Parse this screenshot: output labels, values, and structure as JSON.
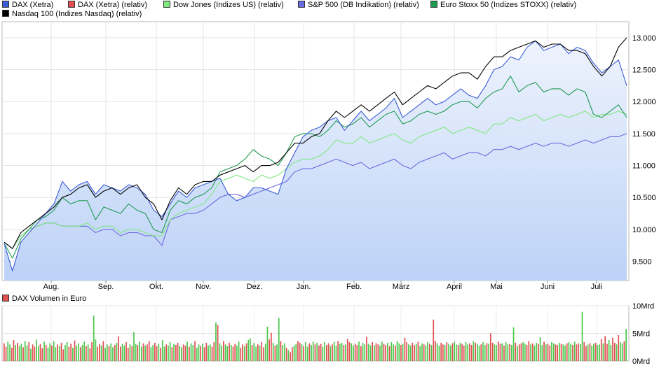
{
  "legend": [
    {
      "name": "DAX (Xetra)",
      "color": "#3b5bd6"
    },
    {
      "name": "DAX (Xetra) (relativ)",
      "color": "#e05050"
    },
    {
      "name": "Dow Jones (Indizes US) (relativ)",
      "color": "#7fe87f"
    },
    {
      "name": "S&P 500 (DB Indikation) (relativ)",
      "color": "#6a6ae0"
    },
    {
      "name": "Euro Stoxx 50 (Indizes STOXX) (relativ)",
      "color": "#1e9a50"
    },
    {
      "name": "Nasdaq 100 (Indizes Nasdaq) (relativ)",
      "color": "#000000"
    }
  ],
  "chart_data": [
    {
      "type": "line",
      "x_ticks": [
        "Aug.",
        "Sep.",
        "Okt.",
        "Nov.",
        "Dez.",
        "Jan.",
        "Feb.",
        "März",
        "April",
        "Mai",
        "Juni",
        "Juli"
      ],
      "y_ticks": [
        "9.500",
        "10.000",
        "10.500",
        "11.000",
        "11.500",
        "12.000",
        "12.500",
        "13.000"
      ],
      "ylim": [
        9200,
        13250
      ],
      "area_fill": "#bcd2f7",
      "series": [
        {
          "name": "DAX (Xetra)",
          "color": "#3b5bd6",
          "values": [
            9780,
            9350,
            9800,
            9950,
            10100,
            10250,
            10400,
            10750,
            10600,
            10700,
            10750,
            10550,
            10700,
            10650,
            10600,
            10700,
            10650,
            10550,
            10300,
            10200,
            10400,
            10600,
            10500,
            10650,
            10700,
            10750,
            10800,
            10550,
            10450,
            10500,
            10650,
            10650,
            10600,
            10550,
            10950,
            11200,
            11450,
            11550,
            11600,
            11700,
            11750,
            11550,
            11700,
            11850,
            11700,
            11800,
            11900,
            12050,
            11750,
            11850,
            11950,
            12050,
            11950,
            12000,
            12100,
            12200,
            12100,
            12050,
            12250,
            12500,
            12550,
            12700,
            12650,
            12850,
            12950,
            12800,
            12850,
            12900,
            12750,
            12850,
            12800,
            12600,
            12450,
            12550,
            12650,
            12250
          ]
        },
        {
          "name": "DAX (Xetra) (relativ)",
          "color": "#e05050",
          "values": []
        },
        {
          "name": "Dow Jones (Indizes US) (relativ)",
          "color": "#7fe87f",
          "values": [
            9800,
            9700,
            9900,
            10000,
            10050,
            10100,
            10100,
            10050,
            10050,
            10050,
            10100,
            10000,
            10050,
            10050,
            9950,
            10000,
            10000,
            9950,
            9900,
            9900,
            10150,
            10250,
            10300,
            10350,
            10400,
            10550,
            10750,
            10800,
            10850,
            10800,
            10750,
            10850,
            10800,
            10850,
            10950,
            11050,
            11100,
            11100,
            11150,
            11250,
            11400,
            11350,
            11350,
            11450,
            11350,
            11400,
            11450,
            11500,
            11400,
            11350,
            11450,
            11500,
            11550,
            11600,
            11500,
            11550,
            11600,
            11550,
            11500,
            11650,
            11650,
            11750,
            11700,
            11750,
            11800,
            11700,
            11750,
            11800,
            11750,
            11800,
            11850,
            11750,
            11800,
            11800,
            11850,
            11800
          ]
        },
        {
          "name": "S&P 500 (DB Indikation) (relativ)",
          "color": "#6a6ae0",
          "values": [
            9800,
            9700,
            9900,
            10000,
            10050,
            10100,
            10100,
            10050,
            10050,
            10050,
            10050,
            9950,
            10000,
            10000,
            9900,
            9950,
            9950,
            9900,
            9900,
            9750,
            10150,
            10200,
            10250,
            10250,
            10300,
            10400,
            10500,
            10550,
            10550,
            10500,
            10550,
            10600,
            10650,
            10700,
            10750,
            10900,
            10950,
            10950,
            11000,
            11050,
            11100,
            11050,
            11000,
            11050,
            10950,
            11000,
            11050,
            11100,
            11000,
            10950,
            11050,
            11100,
            11150,
            11200,
            11100,
            11150,
            11200,
            11200,
            11150,
            11250,
            11250,
            11300,
            11250,
            11300,
            11350,
            11300,
            11350,
            11350,
            11300,
            11350,
            11400,
            11350,
            11400,
            11450,
            11450,
            11500
          ]
        },
        {
          "name": "Euro Stoxx 50 (Indizes STOXX) (relativ)",
          "color": "#1e9a50",
          "values": [
            9780,
            9550,
            9850,
            10000,
            10150,
            10200,
            10300,
            10500,
            10400,
            10450,
            10450,
            10150,
            10350,
            10300,
            10250,
            10400,
            10300,
            10250,
            10000,
            9950,
            10300,
            10450,
            10400,
            10500,
            10550,
            10650,
            10900,
            10950,
            11000,
            11100,
            11250,
            11150,
            11100,
            11000,
            11200,
            11450,
            11500,
            11500,
            11450,
            11550,
            11700,
            11600,
            11650,
            11750,
            11600,
            11700,
            11800,
            11850,
            11650,
            11700,
            11800,
            11850,
            11800,
            11850,
            11950,
            12000,
            12000,
            11900,
            12050,
            12150,
            12200,
            12400,
            12150,
            12250,
            12300,
            12150,
            12200,
            12200,
            12100,
            12200,
            12150,
            11800,
            11750,
            11850,
            11950,
            11750
          ]
        },
        {
          "name": "Nasdaq 100 (Indizes Nasdaq) (relativ)",
          "color": "#000000",
          "values": [
            9800,
            9700,
            9950,
            10050,
            10150,
            10250,
            10350,
            10500,
            10550,
            10650,
            10700,
            10500,
            10600,
            10650,
            10550,
            10650,
            10700,
            10500,
            10400,
            10150,
            10450,
            10650,
            10550,
            10700,
            10750,
            10750,
            10850,
            10900,
            10950,
            11000,
            10900,
            11000,
            11000,
            11050,
            11200,
            11350,
            11350,
            11450,
            11500,
            11700,
            11850,
            11750,
            11850,
            11950,
            11850,
            11950,
            12050,
            12150,
            11950,
            12050,
            12150,
            12250,
            12200,
            12300,
            12400,
            12450,
            12450,
            12350,
            12550,
            12700,
            12700,
            12800,
            12850,
            12900,
            12950,
            12850,
            12900,
            12900,
            12800,
            12800,
            12750,
            12550,
            12400,
            12550,
            12850,
            13000
          ]
        }
      ]
    },
    {
      "type": "bar",
      "title": "DAX Volumen in Euro",
      "y_ticks": [
        "10Mrd",
        "5Mrd",
        "0Mrd"
      ],
      "ylim": [
        0,
        10
      ],
      "values": [
        3.2,
        2.6,
        3.5,
        3.0,
        2.4,
        3.8,
        2.9,
        3.3,
        2.7,
        3.1,
        2.5,
        3.6,
        2.8,
        3.4,
        2.2,
        3.0,
        2.6,
        3.9,
        2.7,
        3.1,
        2.3,
        3.5,
        2.9,
        2.4,
        3.2,
        2.8,
        3.6,
        2.5,
        3.0,
        2.7,
        3.3,
        2.1,
        2.9,
        3.4,
        2.6,
        3.1,
        2.4,
        3.7,
        2.8,
        3.2,
        2.5,
        2.9,
        3.5,
        2.7,
        3.0,
        2.3,
        3.4,
        8.2,
        3.9,
        2.6,
        3.1,
        2.8,
        3.6,
        2.4,
        3.0,
        2.7,
        3.2,
        2.5,
        2.9,
        3.3,
        4.5,
        2.6,
        3.1,
        2.8,
        3.4,
        2.4,
        3.0,
        2.7,
        5.2,
        3.1,
        2.9,
        3.5,
        2.6,
        3.2,
        2.8,
        3.0,
        3.6,
        2.5,
        2.9,
        3.3,
        2.7,
        3.1,
        2.4,
        3.8,
        2.6,
        3.0,
        2.8,
        3.4,
        2.5,
        3.1,
        2.9,
        3.3,
        2.7,
        2.5,
        3.0,
        2.8,
        3.5,
        2.6,
        3.2,
        2.9,
        3.6,
        2.4,
        3.0,
        2.7,
        3.1,
        2.5,
        3.3,
        2.8,
        3.0,
        2.6,
        3.4,
        7.0,
        6.5,
        3.2,
        2.8,
        3.6,
        3.0,
        2.7,
        3.3,
        2.9,
        2.6,
        3.1,
        2.8,
        3.5,
        2.4,
        3.0,
        2.7,
        3.2,
        3.8,
        4.1,
        2.9,
        3.3,
        2.6,
        3.0,
        2.8,
        3.4,
        2.5,
        3.1,
        6.2,
        3.9,
        5.1,
        3.3,
        2.8,
        3.0,
        7.8,
        3.6,
        2.9,
        3.2,
        2.4,
        2.0,
        1.6,
        2.5,
        2.8,
        3.1,
        3.6,
        3.3,
        3.0,
        2.7,
        3.4,
        2.6,
        3.2,
        2.9,
        3.5,
        3.0,
        3.3,
        2.8,
        3.1,
        2.6,
        3.4,
        2.9,
        3.2,
        2.7,
        3.0,
        3.5,
        2.8,
        3.6,
        3.1,
        3.3,
        2.9,
        3.0,
        4.0,
        3.4,
        3.2,
        2.8,
        3.1,
        2.9,
        3.5,
        2.7,
        3.3,
        3.0,
        4.4,
        3.1,
        2.8,
        3.4,
        2.9,
        3.2,
        3.0,
        2.8,
        3.5,
        3.1,
        2.9,
        3.3,
        2.7,
        3.4,
        3.0,
        2.8,
        3.6,
        3.2,
        2.9,
        3.1,
        4.2,
        3.4,
        3.0,
        2.8,
        3.3,
        2.9,
        3.1,
        3.5,
        2.7,
        3.2,
        3.0,
        2.8,
        3.4,
        3.1,
        2.9,
        7.5,
        3.6,
        3.2,
        2.8,
        3.3,
        3.0,
        2.9,
        3.4,
        3.1,
        2.8,
        3.2,
        3.5,
        3.0,
        2.9,
        3.3,
        3.1,
        2.8,
        3.4,
        3.0,
        3.2,
        2.9,
        3.6,
        3.3,
        3.1,
        2.8,
        3.0,
        3.4,
        2.9,
        3.2,
        3.1,
        5.0,
        3.3,
        3.0,
        2.9,
        3.5,
        3.1,
        3.2,
        2.8,
        3.4,
        3.0,
        3.1,
        2.9,
        6.1,
        3.3,
        2.7,
        3.0,
        3.2,
        3.4,
        3.1,
        2.9,
        3.6,
        3.0,
        3.2,
        2.8,
        3.3,
        3.1,
        4.3,
        2.9,
        3.5,
        3.0,
        3.1,
        2.8,
        3.4,
        3.2,
        3.0,
        2.9,
        3.3,
        3.1,
        3.0,
        2.8,
        3.2,
        3.4,
        3.1,
        2.9,
        3.5,
        3.0,
        3.2,
        3.1,
        8.9,
        3.4,
        2.7,
        3.0,
        3.2,
        2.8,
        3.1,
        3.3,
        2.9,
        3.0,
        4.0,
        3.2,
        4.5,
        3.1,
        3.8,
        2.9,
        4.2,
        3.3,
        3.0,
        4.7,
        3.4,
        3.2,
        3.6,
        5.8
      ]
    }
  ]
}
